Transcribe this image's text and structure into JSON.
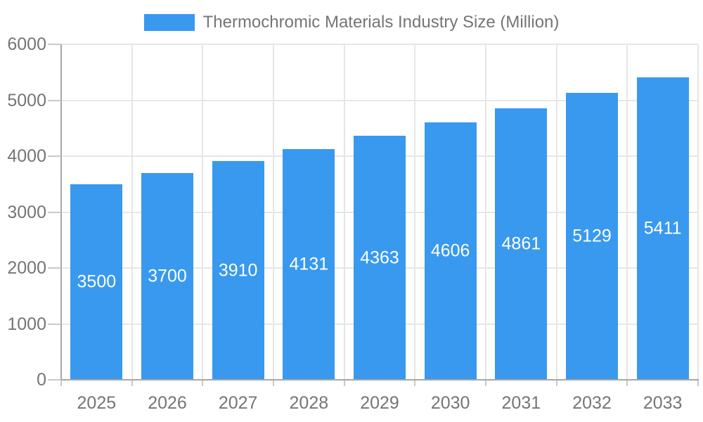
{
  "legend": {
    "label": "Thermochromic Materials Industry Size (Million)"
  },
  "chart_data": {
    "type": "bar",
    "title": "Thermochromic Materials Industry Size (Million)",
    "categories": [
      "2025",
      "2026",
      "2027",
      "2028",
      "2029",
      "2030",
      "2031",
      "2032",
      "2033"
    ],
    "values": [
      3500,
      3700,
      3910,
      4131,
      4363,
      4606,
      4861,
      5129,
      5411
    ],
    "xlabel": "",
    "ylabel": "",
    "ylim": [
      0,
      6000
    ],
    "yticks": [
      0,
      1000,
      2000,
      3000,
      4000,
      5000,
      6000
    ],
    "grid": true,
    "legend_position": "top-center",
    "value_labels": "inside-center",
    "colors": {
      "bar": "#3899ee",
      "grid": "#e6e6e6",
      "axis": "#a6a6a6",
      "tick": "#c9c9c9",
      "text": "#757575",
      "value_label": "#ffffff",
      "background": "#ffffff"
    }
  }
}
